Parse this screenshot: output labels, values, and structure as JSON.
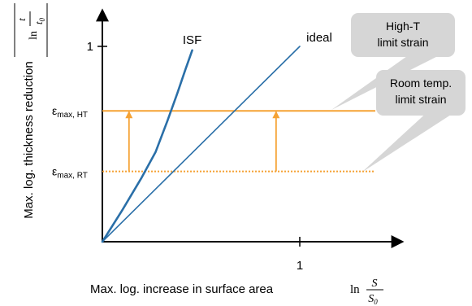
{
  "colors": {
    "curve": "#2a6fa8",
    "limit": "#f5a234",
    "axis": "#000000",
    "callout_fill": "#d6d6d6"
  },
  "chart_data": {
    "type": "line",
    "title": "",
    "xlabel": "Max. log. increase in surface area",
    "xlabel_math": {
      "prefix": "ln",
      "numerator": "S",
      "denominator": "S",
      "denominator_subscript": "0"
    },
    "ylabel": "Max. log. thickness reduction",
    "ylabel_math": {
      "prefix": "ln",
      "numerator": "t",
      "denominator": "t",
      "denominator_subscript": "0"
    },
    "xlim": [
      0,
      1.45
    ],
    "ylim": [
      0,
      1.2
    ],
    "xticks": [
      {
        "value": 1,
        "label": "1"
      }
    ],
    "yticks": [
      {
        "value": 1,
        "label": "1"
      }
    ],
    "series": [
      {
        "name": "ideal",
        "style": "solid",
        "x": [
          0,
          1.0
        ],
        "y": [
          0,
          1.0
        ]
      },
      {
        "name": "ISF",
        "style": "solid",
        "x": [
          0,
          0.1,
          0.2,
          0.27,
          0.33,
          0.38,
          0.42,
          0.455
        ],
        "y": [
          0,
          0.16,
          0.33,
          0.46,
          0.62,
          0.76,
          0.88,
          0.98
        ]
      }
    ],
    "limits": [
      {
        "symbol": "ε",
        "subscript": "max, HT",
        "y": 0.67,
        "style": "solid",
        "callout": [
          "High-T",
          "limit strain"
        ]
      },
      {
        "symbol": "ε",
        "subscript": "max, RT",
        "y": 0.36,
        "style": "dotted",
        "callout": [
          "Room temp.",
          "limit strain"
        ]
      }
    ],
    "arrows": [
      {
        "x": 0.135,
        "from_y": 0.36,
        "to_y": 0.67
      },
      {
        "x": 0.88,
        "from_y": 0.36,
        "to_y": 0.67
      }
    ]
  }
}
